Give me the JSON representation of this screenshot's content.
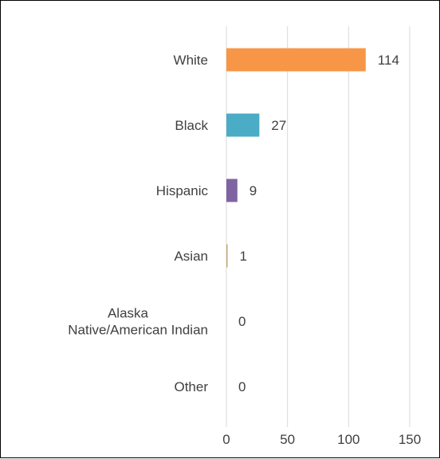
{
  "chart_data": {
    "type": "bar",
    "orientation": "horizontal",
    "title": "",
    "xlabel": "",
    "ylabel": "",
    "categories": [
      "White",
      "Black",
      "Hispanic",
      "Asian",
      "Alaska\nNative/American Indian",
      "Other"
    ],
    "values": [
      114,
      27,
      9,
      1,
      0,
      0
    ],
    "colors": [
      "#F79646",
      "#4BACC6",
      "#8064A2",
      "#C9A77C",
      "#9BBB59",
      "#4F81BD"
    ],
    "xlim": [
      0,
      150
    ],
    "xticks": [
      0,
      50,
      100,
      150
    ],
    "grid": "vertical",
    "legend": "none",
    "data_labels": true
  }
}
